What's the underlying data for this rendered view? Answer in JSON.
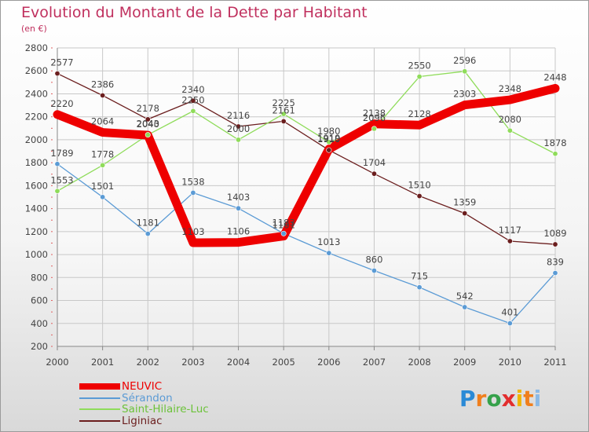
{
  "header": {
    "title": "Evolution du Montant de la Dette par Habitant",
    "subtitle": "(en €)"
  },
  "logo": {
    "text": "Proxiti",
    "letters": [
      "P",
      "r",
      "o",
      "x",
      "i",
      "t",
      "i"
    ]
  },
  "chart_data": {
    "type": "line",
    "title": "Evolution du Montant de la Dette par Habitant",
    "ylabel": "(en €)",
    "xlabel": "",
    "ylim": [
      200,
      2800
    ],
    "yticks": [
      200,
      400,
      600,
      800,
      1000,
      1200,
      1400,
      1600,
      1800,
      2000,
      2200,
      2400,
      2600,
      2800
    ],
    "x": [
      "2000",
      "2001",
      "2002",
      "2003",
      "2004",
      "2005",
      "2006",
      "2007",
      "2008",
      "2009",
      "2010",
      "2011"
    ],
    "grid": true,
    "legend_position": "bottom-left",
    "series": [
      {
        "name": "Liginiac",
        "color": "#6b1e1e",
        "markers": true,
        "values": [
          2577,
          2386,
          2178,
          2340,
          2116,
          2161,
          1910,
          1704,
          1510,
          1359,
          1117,
          1089
        ]
      },
      {
        "name": "Sérandon",
        "color": "#5b9bd5",
        "markers": true,
        "values": [
          1789,
          1501,
          1181,
          1538,
          1403,
          1183,
          1013,
          860,
          715,
          542,
          401,
          839
        ]
      },
      {
        "name": "Saint-Hilaire-Luc",
        "color": "#8fdc5a",
        "markers": true,
        "values": [
          1553,
          1778,
          2043,
          2250,
          2000,
          2225,
          1980,
          2096,
          2550,
          2596,
          2080,
          1878
        ]
      },
      {
        "name": "NEUVIC",
        "color": "#ee0000",
        "markers": false,
        "values": [
          2220,
          2064,
          2040,
          1103,
          1106,
          1161,
          1919,
          2138,
          2128,
          2303,
          2348,
          2448
        ]
      }
    ]
  },
  "legend": [
    {
      "name": "NEUVIC",
      "color": "#ee0000",
      "label_color": "#ee0000"
    },
    {
      "name": "Sérandon",
      "color": "#5b9bd5",
      "label_color": "#5b9bd5"
    },
    {
      "name": "Saint-Hilaire-Luc",
      "color": "#8fdc5a",
      "label_color": "#6cc23a"
    },
    {
      "name": "Liginiac",
      "color": "#6b1e1e",
      "label_color": "#6b1e1e"
    }
  ]
}
